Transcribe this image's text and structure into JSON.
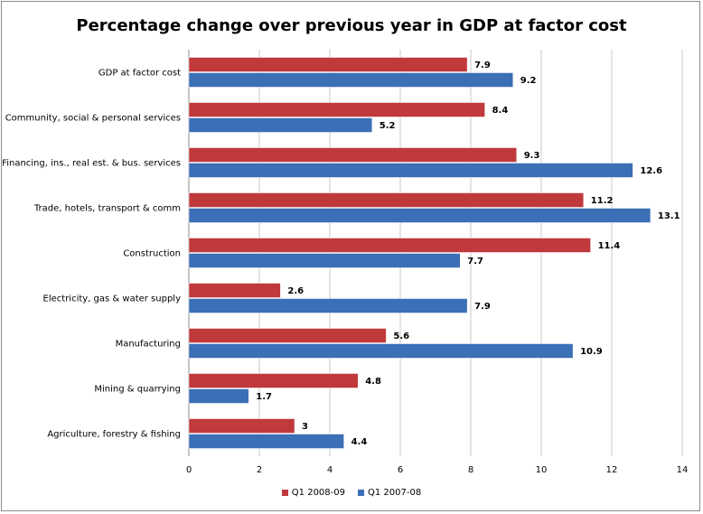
{
  "chart_data": {
    "type": "bar",
    "orientation": "horizontal",
    "title": "Percentage change over previous year in GDP at factor cost",
    "categories": [
      "GDP at factor cost",
      "Community, social & personal services",
      "Financing, ins., real est. & bus. services",
      "Trade, hotels, transport & comm",
      "Construction",
      "Electricity, gas & water supply",
      "Manufacturing",
      "Mining & quarrying",
      "Agriculture, forestry & fishing"
    ],
    "series": [
      {
        "name": "Q1 2008-09",
        "color": "#c0393b",
        "values": [
          7.9,
          8.4,
          9.3,
          11.2,
          11.4,
          2.6,
          5.6,
          4.8,
          3
        ]
      },
      {
        "name": "Q1 2007-08",
        "color": "#3b6fb6",
        "values": [
          9.2,
          5.2,
          12.6,
          13.1,
          7.7,
          7.9,
          10.9,
          1.7,
          4.4
        ]
      }
    ],
    "xlim": [
      0,
      14
    ],
    "xticks": [
      0,
      2,
      4,
      6,
      8,
      10,
      12,
      14
    ],
    "grid": true,
    "legend_position": "bottom"
  }
}
